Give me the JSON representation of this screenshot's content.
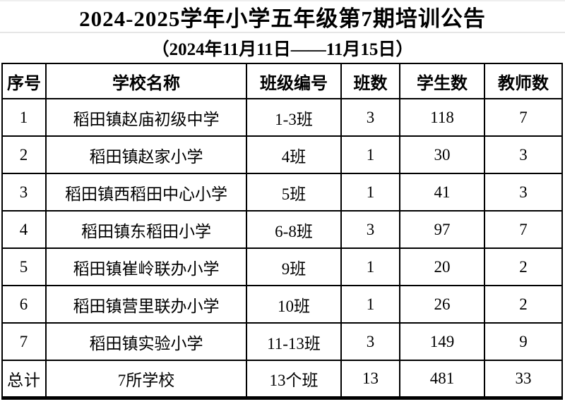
{
  "title": "2024-2025学年小学五年级第7期培训公告",
  "subtitle": "（2024年11月11日——11月15日）",
  "colors": {
    "text": "#000000",
    "background": "#ffffff",
    "table_border": "#000000",
    "title_divider": "#e6e6e6"
  },
  "table": {
    "columns": [
      {
        "key": "index",
        "label": "序号"
      },
      {
        "key": "school",
        "label": "学校名称"
      },
      {
        "key": "class_no",
        "label": "班级编号"
      },
      {
        "key": "class_count",
        "label": "班数"
      },
      {
        "key": "students",
        "label": "学生数"
      },
      {
        "key": "teachers",
        "label": "教师数"
      }
    ],
    "rows": [
      {
        "index": "1",
        "school": "稻田镇赵庙初级中学",
        "class_no": "1-3班",
        "class_count": "3",
        "students": "118",
        "teachers": "7"
      },
      {
        "index": "2",
        "school": "稻田镇赵家小学",
        "class_no": "4班",
        "class_count": "1",
        "students": "30",
        "teachers": "3"
      },
      {
        "index": "3",
        "school": "稻田镇西稻田中心小学",
        "class_no": "5班",
        "class_count": "1",
        "students": "41",
        "teachers": "3"
      },
      {
        "index": "4",
        "school": "稻田镇东稻田小学",
        "class_no": "6-8班",
        "class_count": "3",
        "students": "97",
        "teachers": "7"
      },
      {
        "index": "5",
        "school": "稻田镇崔岭联办小学",
        "class_no": "9班",
        "class_count": "1",
        "students": "20",
        "teachers": "2"
      },
      {
        "index": "6",
        "school": "稻田镇营里联办小学",
        "class_no": "10班",
        "class_count": "1",
        "students": "26",
        "teachers": "2"
      },
      {
        "index": "7",
        "school": "稻田镇实验小学",
        "class_no": "11-13班",
        "class_count": "3",
        "students": "149",
        "teachers": "9"
      }
    ],
    "total_row": {
      "index": "总计",
      "school": "7所学校",
      "class_no": "13个班",
      "class_count": "13",
      "students": "481",
      "teachers": "33"
    }
  }
}
